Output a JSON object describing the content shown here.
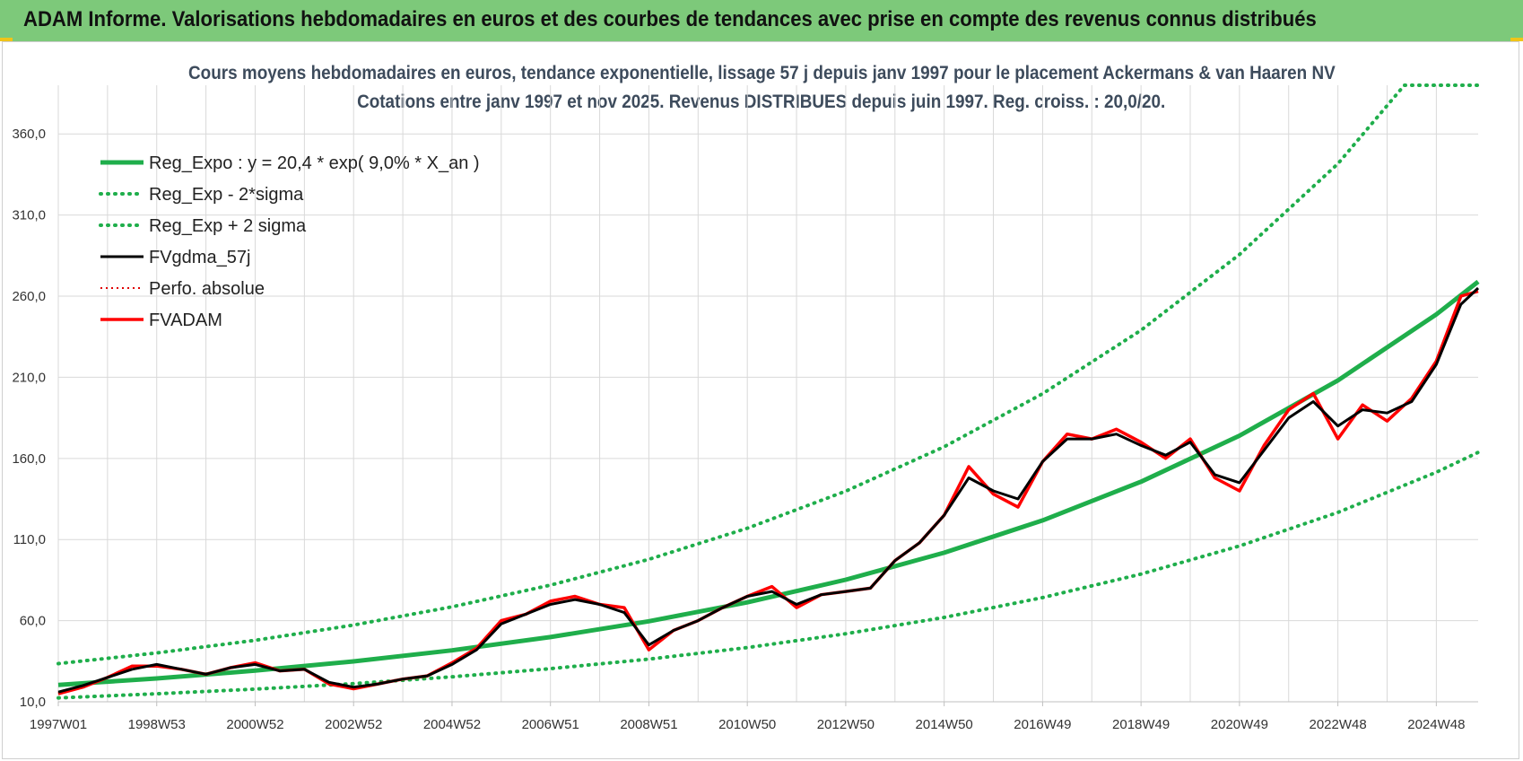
{
  "header": {
    "title": "ADAM Informe. Valorisations hebdomadaires en euros et des courbes de tendances avec prise en compte des revenus connus distribués"
  },
  "colors": {
    "banner": "#7dc97a",
    "trend": "#1fae4b",
    "band": "#1fae4b",
    "smooth": "#000000",
    "perf": "#e00000",
    "price": "#ff0000",
    "grid": "#d9d9d9"
  },
  "chart_data": {
    "type": "line",
    "title": "Cours moyens hebdomadaires en euros, tendance exponentielle, lissage 57 j depuis janv 1997 pour le placement Ackermans & van Haaren NV",
    "subtitle": "Cotations entre janv 1997 et nov 2025. Revenus DISTRIBUES depuis juin 1997. Reg. croiss. : 20,0/20.",
    "xlabel": "",
    "ylabel": "",
    "x_range": [
      1997.0,
      2025.85
    ],
    "ylim": [
      10,
      390
    ],
    "y_ticks": [
      "10,0",
      "60,0",
      "110,0",
      "160,0",
      "210,0",
      "260,0",
      "310,0",
      "360,0"
    ],
    "y_tick_values": [
      10,
      60,
      110,
      160,
      210,
      260,
      310,
      360
    ],
    "x_ticks": [
      "1997W01",
      "1998W53",
      "2000W52",
      "2002W52",
      "2004W52",
      "2006W51",
      "2008W51",
      "2010W50",
      "2012W50",
      "2014W50",
      "2016W49",
      "2018W49",
      "2020W49",
      "2022W48",
      "2024W48"
    ],
    "x_tick_values": [
      1997.0,
      1999.0,
      2001.0,
      2003.0,
      2005.0,
      2007.0,
      2009.0,
      2011.0,
      2013.0,
      2015.0,
      2017.0,
      2019.0,
      2021.0,
      2023.0,
      2025.0
    ],
    "grid": true,
    "legend_position": "top-left",
    "legend": [
      "Reg_Expo : y = 20,4 * exp( 9,0% *  X_an )",
      "Reg_Exp - 2*sigma",
      "Reg_Exp + 2 sigma",
      "FVgdma_57j",
      "Perfo. absolue",
      "FVADAM"
    ],
    "series": [
      {
        "name": "Reg_Expo : y = 20,4 * exp( 9,0% *  X_an )",
        "x": [
          1997.0,
          1999.0,
          2001.0,
          2003.0,
          2005.0,
          2007.0,
          2009.0,
          2011.0,
          2013.0,
          2015.0,
          2017.0,
          2019.0,
          2021.0,
          2023.0,
          2025.0,
          2025.85
        ],
        "values": [
          20.4,
          24.4,
          29.2,
          34.9,
          41.7,
          49.9,
          59.6,
          71.3,
          85.2,
          101.9,
          121.8,
          145.6,
          174.0,
          208.1,
          248.8,
          268.9
        ]
      },
      {
        "name": "Reg_Exp - 2*sigma",
        "x": [
          1997.0,
          1999.0,
          2001.0,
          2003.0,
          2005.0,
          2007.0,
          2009.0,
          2011.0,
          2013.0,
          2015.0,
          2017.0,
          2019.0,
          2021.0,
          2023.0,
          2025.0,
          2025.85
        ],
        "values": [
          12.4,
          14.9,
          17.8,
          21.2,
          25.4,
          30.4,
          36.3,
          43.4,
          51.9,
          62.0,
          74.2,
          88.7,
          106.0,
          126.7,
          151.5,
          163.7
        ]
      },
      {
        "name": "Reg_Exp + 2 sigma",
        "x": [
          1997.0,
          1999.0,
          2001.0,
          2003.0,
          2005.0,
          2007.0,
          2009.0,
          2011.0,
          2013.0,
          2015.0,
          2017.0,
          2019.0,
          2021.0,
          2023.0,
          2024.35,
          2025.85
        ],
        "values": [
          33.5,
          40.1,
          47.9,
          57.3,
          68.5,
          81.9,
          97.8,
          117.0,
          139.8,
          167.2,
          199.9,
          239.0,
          285.7,
          341.6,
          390.0,
          390.0
        ]
      },
      {
        "name": "FVgdma_57j",
        "x": [
          1997.0,
          1997.5,
          1998.0,
          1998.5,
          1999.0,
          1999.5,
          2000.0,
          2000.5,
          2001.0,
          2001.5,
          2002.0,
          2002.5,
          2003.0,
          2003.5,
          2004.0,
          2004.5,
          2005.0,
          2005.5,
          2006.0,
          2006.5,
          2007.0,
          2007.5,
          2008.0,
          2008.5,
          2009.0,
          2009.5,
          2010.0,
          2010.5,
          2011.0,
          2011.5,
          2012.0,
          2012.5,
          2013.0,
          2013.5,
          2014.0,
          2014.5,
          2015.0,
          2015.5,
          2016.0,
          2016.5,
          2017.0,
          2017.5,
          2018.0,
          2018.5,
          2019.0,
          2019.5,
          2020.0,
          2020.5,
          2021.0,
          2021.5,
          2022.0,
          2022.5,
          2023.0,
          2023.5,
          2024.0,
          2024.5,
          2025.0,
          2025.5,
          2025.85
        ],
        "values": [
          16,
          20,
          25,
          30,
          33,
          30,
          27,
          31,
          33,
          29,
          30,
          22,
          19,
          21,
          24,
          26,
          33,
          42,
          58,
          64,
          70,
          73,
          70,
          65,
          45,
          54,
          60,
          68,
          75,
          78,
          70,
          76,
          78,
          80,
          97,
          108,
          125,
          148,
          140,
          135,
          158,
          172,
          172,
          175,
          168,
          162,
          170,
          150,
          145,
          165,
          185,
          195,
          180,
          190,
          188,
          195,
          218,
          255,
          265
        ]
      },
      {
        "name": "Perfo. absolue",
        "x": [
          1997.0,
          1997.5,
          1998.0,
          1998.5,
          1999.0,
          1999.5,
          2000.0,
          2000.5,
          2001.0,
          2001.5,
          2002.0,
          2002.5,
          2003.0,
          2003.5,
          2004.0,
          2004.5,
          2005.0,
          2005.5,
          2006.0,
          2006.5,
          2007.0,
          2007.5,
          2008.0,
          2008.5,
          2009.0,
          2009.5,
          2010.0,
          2010.5,
          2011.0,
          2011.5,
          2012.0,
          2012.5,
          2013.0,
          2013.5,
          2014.0,
          2014.5,
          2015.0,
          2015.5,
          2016.0,
          2016.5,
          2017.0,
          2017.5,
          2018.0,
          2018.5,
          2019.0,
          2019.5,
          2020.0,
          2020.5,
          2021.0,
          2021.5,
          2022.0,
          2022.5,
          2023.0,
          2023.5,
          2024.0,
          2024.5,
          2025.0,
          2025.5,
          2025.85
        ],
        "values": [
          15,
          19,
          25,
          32,
          32,
          30,
          27,
          31,
          34,
          29,
          30,
          21,
          18,
          21,
          24,
          26,
          34,
          43,
          60,
          64,
          72,
          75,
          70,
          68,
          42,
          54,
          60,
          68,
          75,
          81,
          68,
          76,
          78,
          80,
          97,
          108,
          125,
          155,
          138,
          130,
          158,
          175,
          172,
          178,
          170,
          160,
          172,
          148,
          140,
          168,
          190,
          200,
          172,
          193,
          183,
          197,
          220,
          260,
          263
        ]
      },
      {
        "name": "FVADAM",
        "x": [
          1997.0,
          1997.5,
          1998.0,
          1998.5,
          1999.0,
          1999.5,
          2000.0,
          2000.5,
          2001.0,
          2001.5,
          2002.0,
          2002.5,
          2003.0,
          2003.5,
          2004.0,
          2004.5,
          2005.0,
          2005.5,
          2006.0,
          2006.5,
          2007.0,
          2007.5,
          2008.0,
          2008.5,
          2009.0,
          2009.5,
          2010.0,
          2010.5,
          2011.0,
          2011.5,
          2012.0,
          2012.5,
          2013.0,
          2013.5,
          2014.0,
          2014.5,
          2015.0,
          2015.5,
          2016.0,
          2016.5,
          2017.0,
          2017.5,
          2018.0,
          2018.5,
          2019.0,
          2019.5,
          2020.0,
          2020.5,
          2021.0,
          2021.5,
          2022.0,
          2022.5,
          2023.0,
          2023.5,
          2024.0,
          2024.5,
          2025.0,
          2025.5,
          2025.85
        ],
        "values": [
          15,
          19,
          25,
          32,
          32,
          30,
          27,
          31,
          34,
          29,
          30,
          21,
          18,
          21,
          24,
          26,
          34,
          43,
          60,
          64,
          72,
          75,
          70,
          68,
          42,
          54,
          60,
          68,
          75,
          81,
          68,
          76,
          78,
          80,
          97,
          108,
          125,
          155,
          138,
          130,
          158,
          175,
          172,
          178,
          170,
          160,
          172,
          148,
          140,
          168,
          190,
          200,
          172,
          193,
          183,
          197,
          220,
          260,
          263
        ]
      }
    ]
  }
}
